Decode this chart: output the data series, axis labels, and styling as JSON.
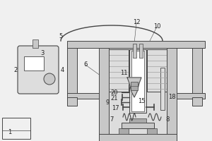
{
  "bg_color": "#f0f0f0",
  "line_color": "#444444",
  "gray_dark": "#888888",
  "gray_mid": "#aaaaaa",
  "gray_fill": "#c8c8c8",
  "gray_light": "#dddddd",
  "white": "#ffffff",
  "label_color": "#222222"
}
